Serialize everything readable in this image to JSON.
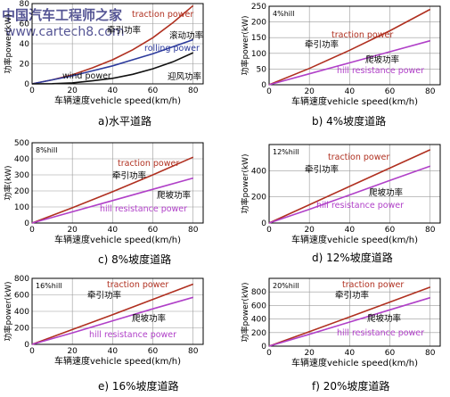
{
  "watermark": {
    "line1": "中国汽车工程师之家",
    "line2": "www.cartech8.com"
  },
  "chart_data": [
    {
      "type": "line",
      "caption": "a)水平道路",
      "corner_label": "",
      "xlabel": "车辆速度vehicle speed(km/h)",
      "ylabel": "功率power(kW)",
      "xlim": [
        0,
        85
      ],
      "ylim": [
        0,
        80
      ],
      "xticks": [
        0,
        20,
        40,
        60,
        80
      ],
      "yticks": [
        0,
        20,
        40,
        60,
        80
      ],
      "x": [
        0,
        10,
        20,
        30,
        40,
        50,
        60,
        70,
        80
      ],
      "series": [
        {
          "name": "traction power",
          "cn": "牵引功率",
          "color": "#b03020",
          "values": [
            0,
            4,
            9,
            16,
            24,
            34,
            46,
            61,
            78
          ]
        },
        {
          "name": "rolling power",
          "cn": "滚动功率",
          "color": "#2c3a9c",
          "values": [
            0,
            4,
            8,
            13,
            18,
            24,
            30,
            37,
            44
          ]
        },
        {
          "name": "wind power",
          "cn": "迎风功率",
          "color": "#111111",
          "values": [
            0,
            0.2,
            1,
            3,
            5.5,
            9.5,
            15,
            22,
            31
          ]
        }
      ]
    },
    {
      "type": "line",
      "caption": "b) 4%坡度道路",
      "corner_label": "4%hill",
      "xlabel": "车辆速度vehicle speed(km/h)",
      "ylabel": "功率power(kW)",
      "xlim": [
        0,
        85
      ],
      "ylim": [
        0,
        250
      ],
      "xticks": [
        0,
        20,
        40,
        60,
        80
      ],
      "yticks": [
        0,
        50,
        100,
        150,
        200,
        250
      ],
      "x": [
        0,
        20,
        40,
        60,
        80
      ],
      "series": [
        {
          "name": "traction power",
          "cn": "牵引功率",
          "color": "#b03020",
          "values": [
            0,
            52,
            110,
            172,
            240
          ]
        },
        {
          "name": "hill resistance power",
          "cn": "爬坡功率",
          "color": "#b040c8",
          "values": [
            0,
            35,
            70,
            105,
            140
          ]
        }
      ]
    },
    {
      "type": "line",
      "caption": "c) 8%坡度道路",
      "corner_label": "8%hill",
      "xlabel": "车辆速度vehicle speed(km/h)",
      "ylabel": "功率(kW)",
      "xlim": [
        0,
        85
      ],
      "ylim": [
        0,
        500
      ],
      "xticks": [
        0,
        20,
        40,
        60,
        80
      ],
      "yticks": [
        0,
        100,
        200,
        300,
        400,
        500
      ],
      "x": [
        0,
        20,
        40,
        60,
        80
      ],
      "series": [
        {
          "name": "traction power",
          "cn": "牵引功率",
          "color": "#b03020",
          "values": [
            0,
            95,
            195,
            300,
            410
          ]
        },
        {
          "name": "hill resistance power",
          "cn": "爬坡功率",
          "color": "#b040c8",
          "values": [
            0,
            70,
            140,
            210,
            280
          ]
        }
      ]
    },
    {
      "type": "line",
      "caption": "d) 12%坡度道路",
      "corner_label": "12%hill",
      "xlabel": "车辆速度vehicle speed(km/h)",
      "ylabel": "功率power(kW)",
      "xlim": [
        0,
        85
      ],
      "ylim": [
        0,
        600
      ],
      "xticks": [
        0,
        20,
        40,
        60,
        80
      ],
      "yticks": [
        0,
        200,
        400
      ],
      "x": [
        0,
        20,
        40,
        60,
        80
      ],
      "series": [
        {
          "name": "traction power",
          "cn": "牵引功率",
          "color": "#b03020",
          "values": [
            0,
            140,
            280,
            420,
            560
          ]
        },
        {
          "name": "hill resistance power",
          "cn": "爬坡功率",
          "color": "#b040c8",
          "values": [
            0,
            105,
            215,
            325,
            435
          ]
        }
      ]
    },
    {
      "type": "line",
      "caption": "e) 16%坡度道路",
      "corner_label": "16%hill",
      "xlabel": "车辆速度vehicle speed(km/h)",
      "ylabel": "功率power(kW)",
      "xlim": [
        0,
        85
      ],
      "ylim": [
        0,
        800
      ],
      "xticks": [
        0,
        20,
        40,
        60,
        80
      ],
      "yticks": [
        0,
        200,
        400,
        600,
        800
      ],
      "x": [
        0,
        20,
        40,
        60,
        80
      ],
      "series": [
        {
          "name": "traction power",
          "cn": "牵引功率",
          "color": "#b03020",
          "values": [
            0,
            180,
            360,
            545,
            730
          ]
        },
        {
          "name": "hill resistance power",
          "cn": "爬坡功率",
          "color": "#b040c8",
          "values": [
            0,
            140,
            285,
            430,
            570
          ]
        }
      ]
    },
    {
      "type": "line",
      "caption": "f) 20%坡度道路",
      "corner_label": "20%hill",
      "xlabel": "车辆速度vehicle speed(km/h)",
      "ylabel": "功率power(kW)",
      "xlim": [
        0,
        85
      ],
      "ylim": [
        0,
        1000
      ],
      "xticks": [
        0,
        20,
        40,
        60,
        80
      ],
      "yticks": [
        0,
        200,
        400,
        600,
        800
      ],
      "x": [
        0,
        20,
        40,
        60,
        80
      ],
      "series": [
        {
          "name": "traction power",
          "cn": "牵引功率",
          "color": "#b03020",
          "values": [
            0,
            215,
            430,
            650,
            870
          ]
        },
        {
          "name": "hill resistance power",
          "cn": "爬坡功率",
          "color": "#b040c8",
          "values": [
            0,
            175,
            355,
            535,
            715
          ]
        }
      ]
    }
  ]
}
